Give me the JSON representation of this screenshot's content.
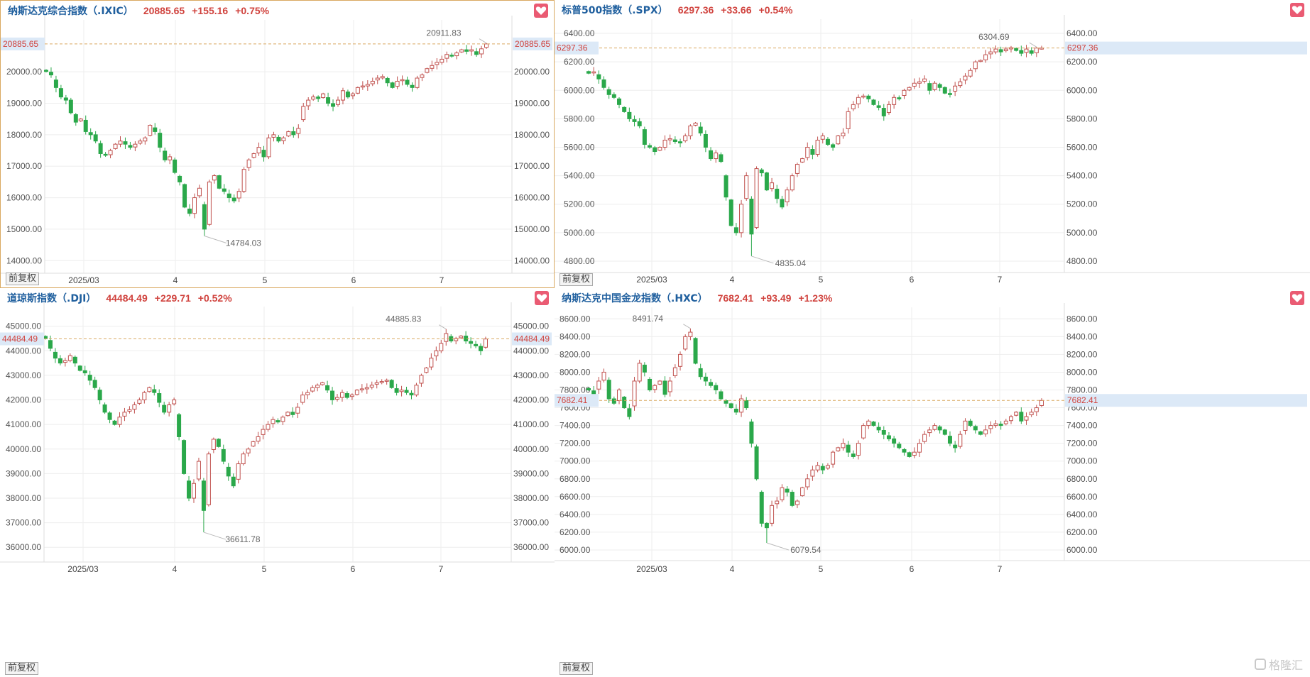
{
  "colors": {
    "up": "#c0504d",
    "down": "#2aa84a",
    "grid": "#eeeeee",
    "dash": "#d9a860",
    "price_box": "#dce9f7",
    "price_text": "#d0423d"
  },
  "adjust_label": "前复权",
  "watermark": "格隆汇",
  "x_ticks": [
    "2025/03",
    "4",
    "5",
    "6",
    "7"
  ],
  "panels": [
    {
      "name": "纳斯达克综合指数（.IXIC）",
      "last": "20885.65",
      "change": "+155.16",
      "pct": "+0.75%",
      "chart_data": {
        "type": "candlestick",
        "y_ticks": [
          "20000.00",
          "19000.00",
          "18000.00",
          "17000.00",
          "16000.00",
          "15000.00",
          "14000.00"
        ],
        "y_tick_values": [
          20000,
          19000,
          18000,
          17000,
          16000,
          15000,
          14000
        ],
        "ylim": [
          13600,
          21650
        ],
        "last_label": "20885.65",
        "last_value": 20885.65,
        "high_label": "20911.83",
        "high_value": 20911.83,
        "high_index": 89,
        "low_label": "14784.03",
        "low_value": 14784.03,
        "low_index": 32,
        "closes": [
          20010,
          19900,
          19500,
          19200,
          19100,
          18700,
          18400,
          18500,
          18100,
          18000,
          17800,
          17400,
          17350,
          17500,
          17700,
          17800,
          17700,
          17600,
          17700,
          17800,
          17900,
          18300,
          18100,
          17600,
          17200,
          17300,
          16800,
          16500,
          15700,
          15500,
          16000,
          16300,
          15000,
          16500,
          16700,
          16300,
          16200,
          16000,
          15900,
          16200,
          16900,
          17200,
          17400,
          17600,
          17300,
          17900,
          18000,
          17800,
          17900,
          18100,
          18000,
          18200,
          18900,
          19100,
          19200,
          19150,
          19300,
          19000,
          18900,
          19100,
          19400,
          19200,
          19300,
          19500,
          19550,
          19600,
          19700,
          19800,
          19850,
          19650,
          19500,
          19700,
          19750,
          19600,
          19500,
          19800,
          19900,
          20100,
          20200,
          20300,
          20400,
          20550,
          20500,
          20600,
          20700,
          20650,
          20700,
          20550,
          20730,
          20885
        ]
      }
    },
    {
      "name": "标普500指数（.SPX）",
      "last": "6297.36",
      "change": "+33.66",
      "pct": "+0.54%",
      "chart_data": {
        "type": "candlestick",
        "y_ticks": [
          "6400.00",
          "6200.00",
          "6000.00",
          "5800.00",
          "5600.00",
          "5400.00",
          "5200.00",
          "5000.00",
          "4800.00"
        ],
        "y_tick_values": [
          6400,
          6200,
          6000,
          5800,
          5600,
          5400,
          5200,
          5000,
          4800
        ],
        "ylim": [
          4720,
          6500
        ],
        "last_label": "6297.36",
        "last_value": 6297.36,
        "high_label": "6304.69",
        "high_value": 6304.69,
        "high_index": 88,
        "low_label": "4835.04",
        "low_value": 4835.04,
        "low_index": 32,
        "closes": [
          6120,
          6130,
          6080,
          6020,
          5970,
          5950,
          5900,
          5850,
          5800,
          5780,
          5750,
          5620,
          5600,
          5570,
          5600,
          5650,
          5660,
          5640,
          5630,
          5680,
          5750,
          5770,
          5700,
          5600,
          5520,
          5560,
          5500,
          5250,
          5050,
          5000,
          5200,
          5400,
          4990,
          5450,
          5420,
          5300,
          5350,
          5240,
          5180,
          5300,
          5400,
          5480,
          5520,
          5600,
          5550,
          5650,
          5680,
          5620,
          5600,
          5680,
          5700,
          5850,
          5900,
          5950,
          5960,
          5940,
          5900,
          5880,
          5820,
          5900,
          5950,
          5940,
          6000,
          6020,
          6050,
          6060,
          6080,
          6000,
          6050,
          6020,
          5980,
          5970,
          6030,
          6060,
          6100,
          6140,
          6200,
          6210,
          6250,
          6270,
          6290,
          6270,
          6290,
          6300,
          6280,
          6260,
          6290,
          6260,
          6297,
          6297
        ]
      }
    },
    {
      "name": "道琼斯指数（.DJI）",
      "last": "44484.49",
      "change": "+229.71",
      "pct": "+0.52%",
      "chart_data": {
        "type": "candlestick",
        "y_ticks": [
          "45000.00",
          "44000.00",
          "43000.00",
          "42000.00",
          "41000.00",
          "40000.00",
          "39000.00",
          "38000.00",
          "37000.00",
          "36000.00"
        ],
        "y_tick_values": [
          45000,
          44000,
          43000,
          42000,
          41000,
          40000,
          39000,
          38000,
          37000,
          36000
        ],
        "ylim": [
          35400,
          45800
        ],
        "last_label": "44484.49",
        "last_value": 44484.49,
        "high_label": "44885.83",
        "high_value": 44885.83,
        "high_index": 81,
        "low_label": "36611.78",
        "low_value": 36611.78,
        "low_index": 32,
        "closes": [
          44500,
          44100,
          43700,
          43500,
          43600,
          43800,
          43500,
          43200,
          43100,
          42800,
          42500,
          42000,
          41500,
          41200,
          41000,
          41300,
          41500,
          41600,
          41800,
          42000,
          42300,
          42500,
          42300,
          41900,
          41500,
          41800,
          42000,
          40500,
          39000,
          38000,
          38600,
          39500,
          37500,
          39800,
          40400,
          40100,
          39500,
          38900,
          38500,
          39400,
          39800,
          40000,
          40300,
          40500,
          40800,
          41000,
          41200,
          41100,
          41300,
          41500,
          41400,
          41700,
          42200,
          42300,
          42500,
          42600,
          42700,
          42400,
          42000,
          42100,
          42300,
          42100,
          42200,
          42400,
          42450,
          42500,
          42600,
          42700,
          42750,
          42800,
          42500,
          42300,
          42400,
          42300,
          42200,
          42600,
          43000,
          43300,
          43700,
          44000,
          44300,
          44700,
          44400,
          44500,
          44600,
          44400,
          44300,
          44200,
          44000,
          44480
        ]
      }
    },
    {
      "name": "纳斯达克中国金龙指数（.HXC）",
      "last": "7682.41",
      "change": "+93.49",
      "pct": "+1.23%",
      "chart_data": {
        "type": "candlestick",
        "y_ticks": [
          "8600.00",
          "8400.00",
          "8200.00",
          "8000.00",
          "7800.00",
          "7600.00",
          "7400.00",
          "7200.00",
          "7000.00",
          "6800.00",
          "6600.00",
          "6400.00",
          "6200.00",
          "6000.00"
        ],
        "y_tick_values": [
          8600,
          8400,
          8200,
          8000,
          7800,
          7600,
          7400,
          7200,
          7000,
          6800,
          6600,
          6400,
          6200,
          6000
        ],
        "ylim": [
          5880,
          8730
        ],
        "last_label": "7682.41",
        "last_value": 7682.41,
        "high_label": "8491.74",
        "high_value": 8491.74,
        "high_index": 20,
        "low_label": "6079.54",
        "low_value": 6079.54,
        "low_index": 35,
        "closes": [
          7800,
          7750,
          7900,
          8000,
          7700,
          7650,
          7800,
          7600,
          7500,
          7900,
          8100,
          8000,
          7800,
          7850,
          7900,
          7750,
          7900,
          8050,
          8200,
          8400,
          8450,
          8100,
          7950,
          7900,
          7850,
          7800,
          7700,
          7650,
          7600,
          7550,
          7700,
          7600,
          7200,
          6800,
          6300,
          6250,
          6500,
          6550,
          6700,
          6650,
          6500,
          6550,
          6700,
          6800,
          6900,
          6950,
          6900,
          6950,
          7100,
          7150,
          7200,
          7100,
          7050,
          7200,
          7400,
          7450,
          7400,
          7350,
          7300,
          7250,
          7200,
          7150,
          7100,
          7050,
          7100,
          7200,
          7300,
          7350,
          7400,
          7350,
          7300,
          7200,
          7150,
          7300,
          7450,
          7400,
          7350,
          7300,
          7350,
          7400,
          7420,
          7400,
          7450,
          7500,
          7550,
          7450,
          7500,
          7550,
          7600,
          7682
        ]
      }
    }
  ]
}
